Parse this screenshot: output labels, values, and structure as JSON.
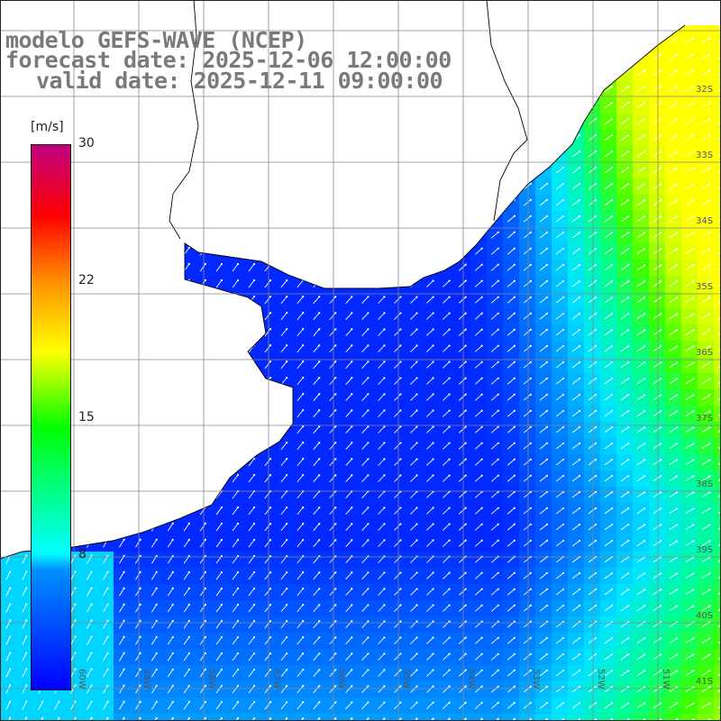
{
  "title": {
    "line1": "modelo GEFS-WAVE (NCEP)",
    "line2": "forecast date: 2025-12-06 12:00:00",
    "line3": "valid date: 2025-12-11 09:00:00"
  },
  "colorbar": {
    "unit": "[m/s]",
    "ticks": [
      "30",
      "22",
      "15",
      "8"
    ]
  },
  "lat_labels": [
    "32S",
    "33S",
    "34S",
    "35S",
    "36S",
    "37S",
    "38S",
    "39S",
    "40S",
    "41S"
  ],
  "lon_labels": [
    "60W",
    "59W",
    "58W",
    "57W",
    "56W",
    "55W",
    "54W",
    "53W",
    "52W",
    "51W"
  ],
  "colors": {
    "land": "#ffffff",
    "coast": "#000000",
    "grid": "#888888",
    "arrow": "#ffffff"
  }
}
